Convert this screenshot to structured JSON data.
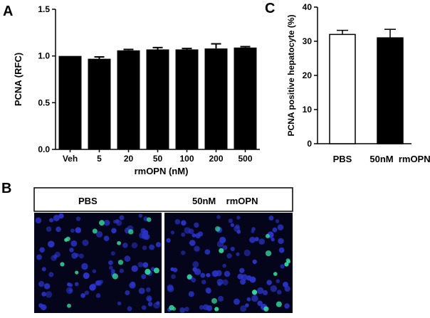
{
  "panels": {
    "a": "A",
    "b": "B",
    "c": "C"
  },
  "chart_data": [
    {
      "type": "bar",
      "panel": "A",
      "categories": [
        "Veh",
        "5",
        "20",
        "50",
        "100",
        "200",
        "500"
      ],
      "values": [
        1.0,
        0.97,
        1.06,
        1.07,
        1.07,
        1.08,
        1.09
      ],
      "errors": [
        0.0,
        0.02,
        0.01,
        0.02,
        0.01,
        0.05,
        0.01
      ],
      "xlabel": "rmOPN (nM)",
      "ylabel": "PCNA (RFC)",
      "ylim": [
        0,
        1.5
      ],
      "yticks": [
        "0.0",
        "0.5",
        "1.0",
        "1.5"
      ],
      "bar_color": "#000000"
    },
    {
      "type": "bar",
      "panel": "C",
      "categories": [
        "PBS",
        "50nM  rmOPN"
      ],
      "values": [
        32,
        31
      ],
      "errors": [
        1.2,
        2.5
      ],
      "fills": [
        "#ffffff",
        "#000000"
      ],
      "ylabel": "PCNA positive hepatocyte (%)",
      "ylim": [
        0,
        40
      ],
      "yticks": [
        "0",
        "10",
        "20",
        "30",
        "40"
      ]
    }
  ],
  "panel_b": {
    "labels": [
      "PBS",
      "50nM    rmOPN"
    ],
    "image_colors": {
      "background": "#04041a",
      "nucleus": "#2a34c8",
      "positive": "#33d69a"
    }
  }
}
